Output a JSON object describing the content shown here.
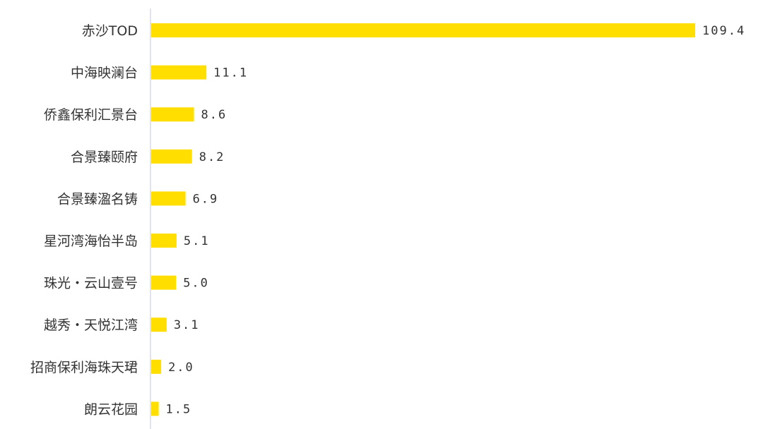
{
  "chart_data": {
    "type": "bar",
    "orientation": "horizontal",
    "title": "",
    "xlabel": "",
    "ylabel": "",
    "categories": [
      "赤沙TOD",
      "中海映澜台",
      "侨鑫保利汇景台",
      "合景臻颐府",
      "合景臻溋名铸",
      "星河湾海怡半岛",
      "珠光・云山壹号",
      "越秀・天悦江湾",
      "招商保利海珠天珺",
      "朗云花园"
    ],
    "values": [
      109.4,
      11.1,
      8.6,
      8.2,
      6.9,
      5.1,
      5.0,
      3.1,
      2.0,
      1.5
    ],
    "value_labels": [
      "109.4",
      "11.1",
      "8.6",
      "8.2",
      "6.9",
      "5.1",
      "5.0",
      "3.1",
      "2.0",
      "1.5"
    ],
    "xlim": [
      0,
      110
    ],
    "grid": false,
    "legend": "none",
    "bar_color": "#FFDE00",
    "axis_color": "#D8D8E8",
    "text_color": "#333333"
  }
}
